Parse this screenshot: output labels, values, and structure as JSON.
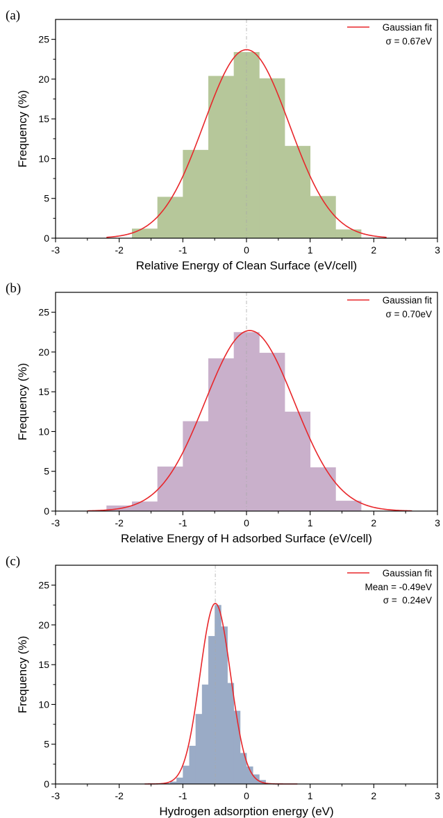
{
  "chart_data": [
    {
      "type": "bar",
      "panel_label": "(a)",
      "xlabel": "Relative Energy of Clean Surface (eV/cell)",
      "ylabel": "Frequency (%)",
      "xlim": [
        -3,
        3
      ],
      "ylim": [
        0,
        27.5
      ],
      "xticks": [
        -3,
        -2,
        -1,
        0,
        1,
        2,
        3
      ],
      "yticks": [
        0,
        5,
        10,
        15,
        20,
        25
      ],
      "bar_color": "#b6c79a",
      "bin_edges": [
        -1.8,
        -1.4,
        -1.0,
        -0.6,
        -0.2,
        0.2,
        0.6,
        1.0,
        1.4,
        1.8
      ],
      "values": [
        1.2,
        5.2,
        11.1,
        20.4,
        23.4,
        20.1,
        11.6,
        5.3,
        1.1
      ],
      "fit": {
        "mean": 0.0,
        "sigma": 0.67,
        "peak": 23.7,
        "color": "#e8262a",
        "range": [
          -2.2,
          2.2
        ]
      },
      "mean_line": 0.0,
      "legend": {
        "entry": "Gaussian fit",
        "lines": [
          "σ = 0.67eV"
        ]
      }
    },
    {
      "type": "bar",
      "panel_label": "(b)",
      "xlabel": "Relative Energy of H adsorbed Surface (eV/cell)",
      "ylabel": "Frequency (%)",
      "xlim": [
        -3,
        3
      ],
      "ylim": [
        0,
        27.5
      ],
      "xticks": [
        -3,
        -2,
        -1,
        0,
        1,
        2,
        3
      ],
      "yticks": [
        0,
        5,
        10,
        15,
        20,
        25
      ],
      "bar_color": "#c9b0cb",
      "bin_edges": [
        -2.2,
        -1.8,
        -1.4,
        -1.0,
        -0.6,
        -0.2,
        0.2,
        0.6,
        1.0,
        1.4,
        1.8
      ],
      "values": [
        0.7,
        1.2,
        5.6,
        11.3,
        19.2,
        22.5,
        19.9,
        12.5,
        5.5,
        1.3
      ],
      "fit": {
        "mean": 0.05,
        "sigma": 0.7,
        "peak": 22.7,
        "color": "#e8262a",
        "range": [
          -2.5,
          2.6
        ]
      },
      "mean_line": 0.0,
      "legend": {
        "entry": "Gaussian fit",
        "lines": [
          "σ = 0.70eV"
        ]
      }
    },
    {
      "type": "bar",
      "panel_label": "(c)",
      "xlabel": "Hydrogen adsorption energy (eV)",
      "ylabel": "Frequency (%)",
      "xlim": [
        -3,
        3
      ],
      "ylim": [
        0,
        27.5
      ],
      "xticks": [
        -3,
        -2,
        -1,
        0,
        1,
        2,
        3
      ],
      "yticks": [
        0,
        5,
        10,
        15,
        20,
        25
      ],
      "bar_color": "#9aabc6",
      "bin_edges": [
        -1.3,
        -1.2,
        -1.1,
        -1.0,
        -0.9,
        -0.8,
        -0.7,
        -0.6,
        -0.5,
        -0.4,
        -0.3,
        -0.2,
        -0.1,
        0.0,
        0.1,
        0.2,
        0.3
      ],
      "values": [
        0.1,
        0.3,
        0.8,
        2.3,
        4.8,
        8.8,
        12.5,
        18.6,
        22.5,
        19.8,
        12.7,
        9.2,
        3.9,
        2.2,
        1.2,
        0.5
      ],
      "fit": {
        "mean": -0.49,
        "sigma": 0.24,
        "peak": 22.7,
        "color": "#e8262a",
        "range": [
          -1.6,
          0.8
        ]
      },
      "mean_line": -0.49,
      "legend": {
        "entry": "Gaussian fit",
        "lines": [
          "Mean = -0.49eV",
          "σ =  0.24eV"
        ]
      }
    }
  ]
}
